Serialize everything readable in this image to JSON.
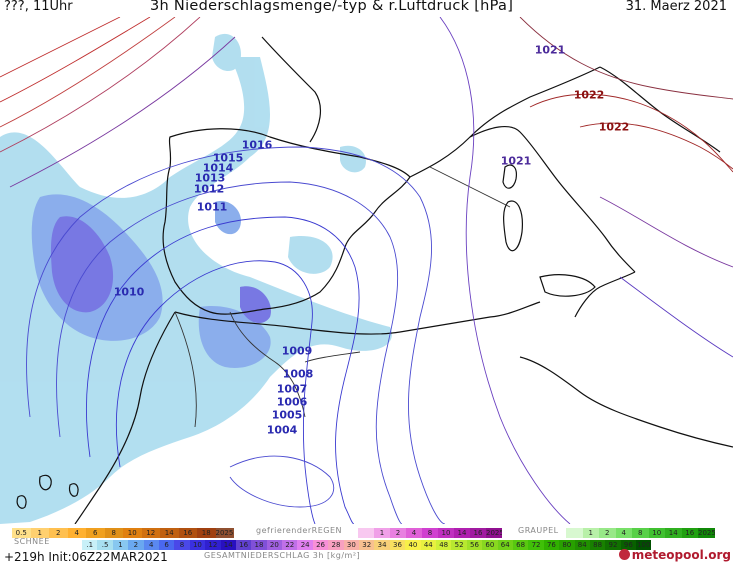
{
  "header": {
    "left": "???, 11Uhr",
    "title": "3h Niederschlagsmenge/-typ & r.Luftdruck [hPa]",
    "date": "31. Maerz 2021"
  },
  "isobars": [
    {
      "label": "1021",
      "color": "#4b2a9a"
    },
    {
      "label": "1022",
      "color": "#8b1010"
    },
    {
      "label": "1022",
      "color": "#8b1010"
    },
    {
      "label": "1021",
      "color": "#4b2a9a"
    },
    {
      "label": "1016",
      "color": "#2a2ab0"
    },
    {
      "label": "1015",
      "color": "#2a2ab0"
    },
    {
      "label": "1014",
      "color": "#2a2ab0"
    },
    {
      "label": "1013",
      "color": "#2a2ab0"
    },
    {
      "label": "1012",
      "color": "#2a2ab0"
    },
    {
      "label": "1011",
      "color": "#2a2ab0"
    },
    {
      "label": "1010",
      "color": "#2a2ab0"
    },
    {
      "label": "1009",
      "color": "#2a2ab0"
    },
    {
      "label": "1008",
      "color": "#2a2ab0"
    },
    {
      "label": "1007",
      "color": "#2a2ab0"
    },
    {
      "label": "1006",
      "color": "#2a2ab0"
    },
    {
      "label": "1005",
      "color": "#2a2ab0"
    },
    {
      "label": "1004",
      "color": "#2a2ab0"
    }
  ],
  "legend": {
    "schnee_title": "SCHNEE",
    "schnee_values": [
      "0.5",
      "1",
      "2",
      "4",
      "6",
      "8",
      "10",
      "12",
      "14",
      "16",
      "18",
      "2025+"
    ],
    "regen_title": "gefrierenderREGEN",
    "regen_values": [
      "",
      "1",
      "2",
      "4",
      "8",
      "10",
      "14",
      "16",
      "2025+"
    ],
    "graupel_title": "GRAUPEL",
    "graupel_values": [
      "",
      "1",
      "2",
      "4",
      "8",
      "10",
      "14",
      "16",
      "2025+"
    ],
    "total_values": [
      ".1",
      ".5",
      "1",
      "2",
      "4",
      "6",
      "8",
      "10",
      "12",
      "14",
      "16",
      "18",
      "20",
      "22",
      "24",
      "26",
      "28",
      "30",
      "32",
      "34",
      "36",
      "40",
      "44",
      "48",
      "52",
      "56",
      "60",
      "64",
      "68",
      "72",
      "76",
      "80",
      "84",
      "88",
      "92",
      "96",
      "100"
    ],
    "total_title": "GESAMTNIEDERSCHLAG 3h [kg/m²]"
  },
  "footer": {
    "run": "+219h Init:06Z22MAR2021",
    "brand": "meteopool.org"
  },
  "colors": {
    "coast": "#111111",
    "precip_light": "#a8d8ec",
    "precip_mid": "#7aa8e8",
    "precip_heavy": "#5a5ae0",
    "isobar_low": "#3a3ad0",
    "isobar_high": "#c03030"
  }
}
